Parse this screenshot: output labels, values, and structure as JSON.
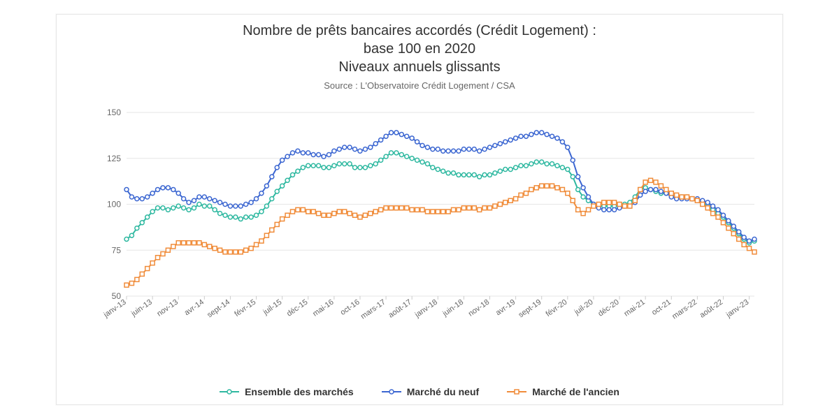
{
  "chart": {
    "type": "line",
    "title_line1": "Nombre de prêts bancaires accordés (Crédit Logement) :",
    "title_line2": "base 100 en 2020",
    "title_line3": "Niveaux annuels glissants",
    "subtitle": "Source : L'Observatoire Crédit Logement / CSA",
    "title_fontsize": 20,
    "subtitle_fontsize": 13,
    "title_color": "#333333",
    "subtitle_color": "#666666",
    "background_color": "#ffffff",
    "panel_border_color": "#e6e6e6",
    "grid_color": "#e6e6e6",
    "axis_label_color": "#666666",
    "axis_label_fontsize": 12,
    "ylim": [
      50,
      150
    ],
    "ytick_step": 25,
    "yticks": [
      50,
      75,
      100,
      125,
      150
    ],
    "x_categories": [
      "janv-13",
      "févr-13",
      "mars-13",
      "avr-13",
      "mai-13",
      "juin-13",
      "juil-13",
      "août-13",
      "sept-13",
      "oct-13",
      "nov-13",
      "déc-13",
      "janv-14",
      "févr-14",
      "mars-14",
      "avr-14",
      "mai-14",
      "juin-14",
      "juil-14",
      "août-14",
      "sept-14",
      "oct-14",
      "nov-14",
      "déc-14",
      "janv-15",
      "févr-15",
      "mars-15",
      "avr-15",
      "mai-15",
      "juin-15",
      "juil-15",
      "août-15",
      "sept-15",
      "oct-15",
      "nov-15",
      "déc-15",
      "janv-16",
      "févr-16",
      "mars-16",
      "avr-16",
      "mai-16",
      "juin-16",
      "juil-16",
      "août-16",
      "sept-16",
      "oct-16",
      "nov-16",
      "déc-16",
      "janv-17",
      "févr-17",
      "mars-17",
      "avr-17",
      "mai-17",
      "juin-17",
      "juil-17",
      "août-17",
      "sept-17",
      "oct-17",
      "nov-17",
      "déc-17",
      "janv-18",
      "févr-18",
      "mars-18",
      "avr-18",
      "mai-18",
      "juin-18",
      "juil-18",
      "août-18",
      "sept-18",
      "oct-18",
      "nov-18",
      "déc-18",
      "janv-19",
      "févr-19",
      "mars-19",
      "avr-19",
      "mai-19",
      "juin-19",
      "juil-19",
      "août-19",
      "sept-19",
      "oct-19",
      "nov-19",
      "déc-19",
      "janv-20",
      "févr-20",
      "mars-20",
      "avr-20",
      "mai-20",
      "juin-20",
      "juil-20",
      "août-20",
      "sept-20",
      "oct-20",
      "nov-20",
      "déc-20",
      "janv-21",
      "févr-21",
      "mars-21",
      "avr-21",
      "mai-21",
      "juin-21",
      "juil-21",
      "août-21",
      "sept-21",
      "oct-21",
      "nov-21",
      "déc-21",
      "janv-22",
      "févr-22",
      "mars-22",
      "avr-22",
      "mai-22",
      "juin-22",
      "juil-22",
      "août-22",
      "sept-22",
      "oct-22",
      "nov-22",
      "déc-22",
      "janv-23",
      "févr-23"
    ],
    "x_tick_every": 5,
    "x_tick_labels": [
      "janv-13",
      "juin-13",
      "nov-13",
      "avr-14",
      "sept-14",
      "févr-15",
      "juil-15",
      "déc-15",
      "mai-16",
      "oct-16",
      "mars-17",
      "août-17",
      "janv-18",
      "juin-18",
      "nov-18",
      "avr-19",
      "sept-19",
      "févr-20",
      "juil-20",
      "déc-20",
      "mai-21",
      "oct-21",
      "mars-22",
      "août-22",
      "janv-23"
    ],
    "x_tick_rotation_deg": -35,
    "line_width": 2,
    "marker_radius": 3,
    "marker_fill": "#ffffff",
    "series": [
      {
        "name": "Ensemble des marchés",
        "color": "#2eb8a0",
        "marker": "circle",
        "values": [
          81,
          83,
          87,
          90,
          93,
          96,
          98,
          98,
          97,
          98,
          99,
          98,
          97,
          98,
          100,
          99,
          99,
          97,
          95,
          94,
          93,
          93,
          92,
          93,
          93,
          94,
          96,
          99,
          103,
          107,
          110,
          113,
          116,
          118,
          120,
          121,
          121,
          121,
          120,
          120,
          121,
          122,
          122,
          122,
          120,
          120,
          120,
          121,
          122,
          124,
          126,
          128,
          128,
          127,
          126,
          125,
          124,
          123,
          122,
          120,
          119,
          118,
          117,
          117,
          116,
          116,
          116,
          116,
          115,
          116,
          116,
          117,
          118,
          119,
          119,
          120,
          121,
          121,
          122,
          123,
          123,
          122,
          122,
          121,
          120,
          119,
          115,
          108,
          104,
          102,
          100,
          99,
          99,
          99,
          99,
          100,
          100,
          101,
          104,
          108,
          109,
          108,
          107,
          106,
          106,
          105,
          104,
          104,
          104,
          103,
          102,
          101,
          99,
          97,
          95,
          93,
          90,
          87,
          84,
          81,
          79,
          80
        ]
      },
      {
        "name": "Marché du neuf",
        "color": "#3b66d1",
        "marker": "circle",
        "values": [
          108,
          104,
          103,
          103,
          104,
          106,
          108,
          109,
          109,
          108,
          106,
          103,
          101,
          102,
          104,
          104,
          103,
          102,
          101,
          100,
          99,
          99,
          99,
          100,
          101,
          103,
          106,
          110,
          115,
          120,
          124,
          126,
          128,
          129,
          128,
          128,
          127,
          127,
          126,
          127,
          129,
          130,
          131,
          131,
          130,
          129,
          130,
          131,
          133,
          135,
          137,
          139,
          139,
          138,
          137,
          136,
          134,
          132,
          131,
          130,
          130,
          129,
          129,
          129,
          129,
          130,
          130,
          130,
          129,
          130,
          131,
          132,
          133,
          134,
          135,
          136,
          137,
          137,
          138,
          139,
          139,
          138,
          137,
          136,
          134,
          131,
          124,
          115,
          109,
          104,
          100,
          98,
          97,
          97,
          97,
          98,
          99,
          99,
          101,
          105,
          107,
          108,
          108,
          107,
          106,
          104,
          103,
          103,
          103,
          103,
          103,
          102,
          101,
          99,
          97,
          94,
          91,
          88,
          85,
          82,
          80,
          81
        ]
      },
      {
        "name": "Marché de l'ancien",
        "color": "#f08c3a",
        "marker": "square",
        "values": [
          56,
          57,
          59,
          62,
          65,
          68,
          71,
          73,
          75,
          77,
          79,
          79,
          79,
          79,
          79,
          78,
          77,
          76,
          75,
          74,
          74,
          74,
          74,
          75,
          76,
          78,
          80,
          83,
          86,
          89,
          92,
          94,
          96,
          97,
          97,
          96,
          96,
          95,
          94,
          94,
          95,
          96,
          96,
          95,
          94,
          93,
          94,
          95,
          96,
          97,
          98,
          98,
          98,
          98,
          98,
          97,
          97,
          97,
          96,
          96,
          96,
          96,
          96,
          97,
          97,
          98,
          98,
          98,
          97,
          98,
          98,
          99,
          100,
          101,
          102,
          103,
          105,
          106,
          108,
          109,
          110,
          110,
          110,
          109,
          108,
          106,
          102,
          97,
          95,
          97,
          99,
          100,
          101,
          101,
          101,
          100,
          99,
          99,
          102,
          108,
          112,
          113,
          112,
          110,
          108,
          106,
          105,
          104,
          104,
          103,
          102,
          100,
          98,
          95,
          93,
          90,
          87,
          84,
          81,
          78,
          76,
          74
        ]
      }
    ],
    "legend": {
      "position": "bottom",
      "fontsize": 14,
      "font_weight": "600",
      "items": [
        "Ensemble des marchés",
        "Marché du neuf",
        "Marché de l'ancien"
      ]
    }
  }
}
